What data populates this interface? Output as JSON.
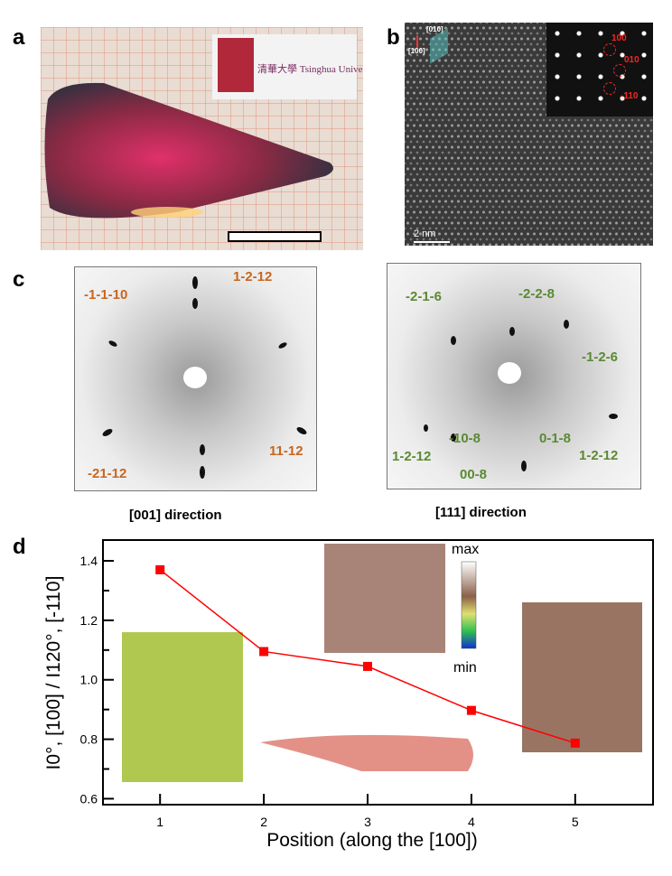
{
  "panels": {
    "a": {
      "label": "a",
      "logo_text": "清華大學 Tsinghua University"
    },
    "b": {
      "label": "b",
      "axis_labels": [
        "[010]",
        "[100]"
      ],
      "fft_spots": [
        "100",
        "010",
        "-110"
      ],
      "scale_bar": "2 nm"
    },
    "c": {
      "label": "c",
      "left": {
        "caption": "[001] direction",
        "spots": [
          "1-2-12",
          "-1-1-10",
          "-21-12",
          "11-12"
        ]
      },
      "right": {
        "caption": "[111] direction",
        "spots": [
          "-2-1-6",
          "-2-2-8",
          "-1-2-6",
          "1-2-12",
          "-10-8",
          "0-1-8",
          "1-2-12",
          "00-8"
        ]
      }
    },
    "d": {
      "label": "d",
      "colorbar": {
        "max": "max",
        "min": "min"
      }
    }
  },
  "colors": {
    "c_left_labels": "#c8661e",
    "c_right_labels": "#5a8a32",
    "series": "#ff0000"
  },
  "chart_data": {
    "type": "line",
    "xlabel": "Position (along the [100])",
    "ylabel": "I0°, [100] / I120°, [-110]",
    "x": [
      1,
      2,
      3,
      4,
      5
    ],
    "values": [
      1.37,
      1.095,
      1.045,
      0.897,
      0.787
    ],
    "xticks": [
      "1",
      "2",
      "3",
      "4",
      "5"
    ],
    "yticks": [
      "0.6",
      "0.8",
      "1.0",
      "1.2",
      "1.4"
    ],
    "xlim": [
      0.45,
      5.75
    ],
    "ylim": [
      0.58,
      1.47
    ],
    "marker": "square",
    "grid": false
  }
}
